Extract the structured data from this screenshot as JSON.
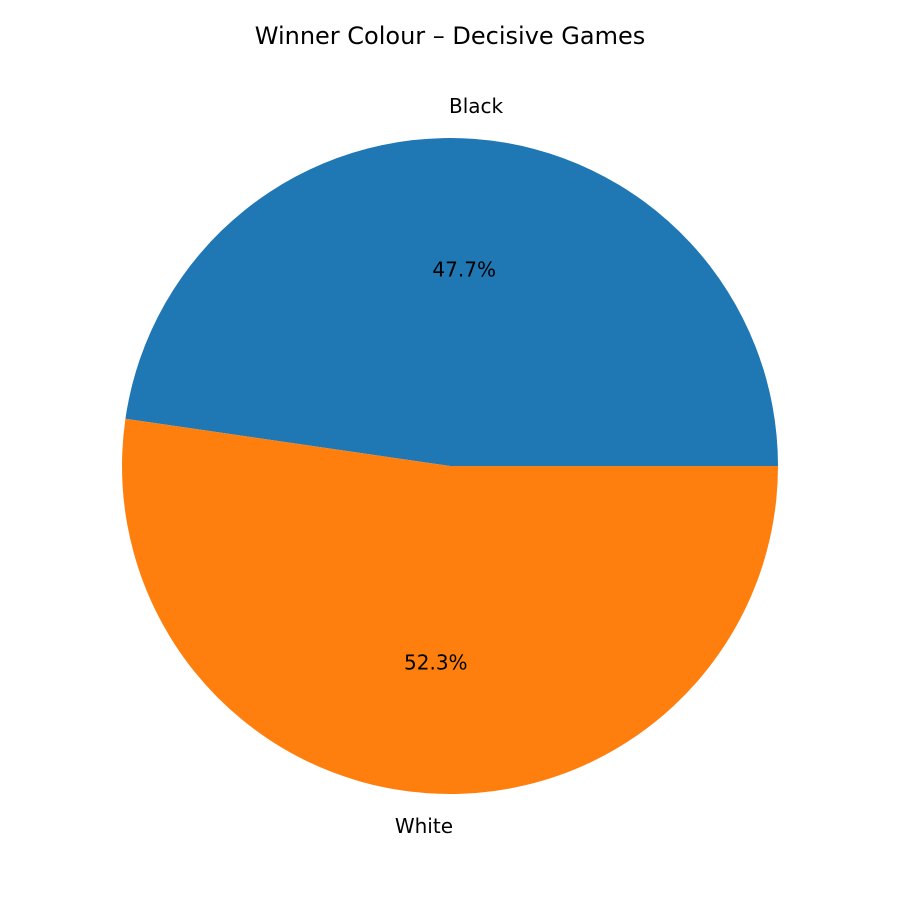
{
  "chart_data": {
    "type": "pie",
    "title": "Winner Colour – Decisive Games",
    "start_angle": "0° (3 o'clock), counter-clockwise",
    "slices": [
      {
        "label": "Black",
        "value": 47.7,
        "pct_label": "47.7%",
        "color": "#1f77b4"
      },
      {
        "label": "White",
        "value": 52.3,
        "pct_label": "52.3%",
        "color": "#ff7f0e"
      }
    ]
  }
}
